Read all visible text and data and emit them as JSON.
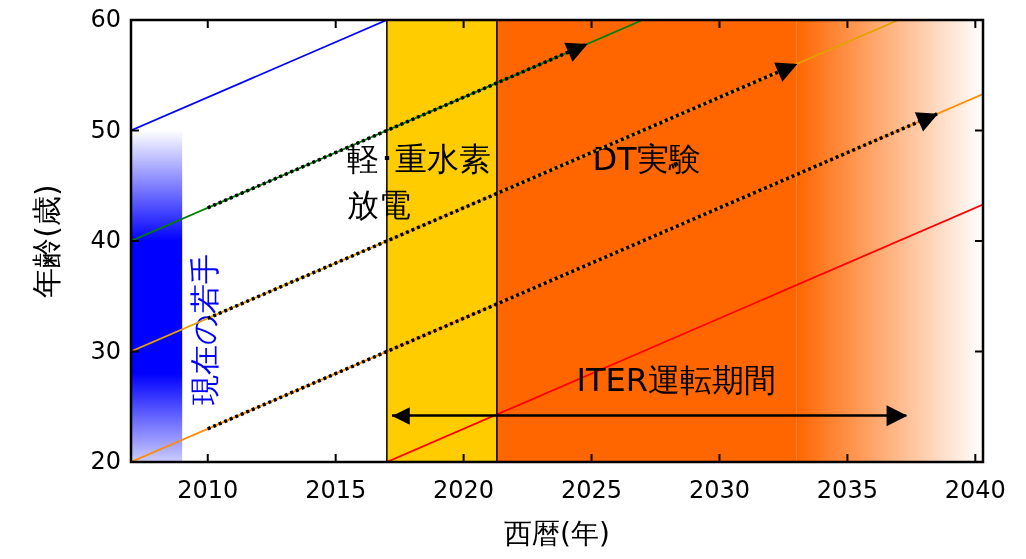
{
  "chart_data": {
    "type": "line",
    "xlabel": "西暦(年)",
    "ylabel": "年齢(歳)",
    "xlim": [
      2007,
      2040.3
    ],
    "ylim": [
      20,
      60
    ],
    "xticks": [
      2010,
      2015,
      2020,
      2025,
      2030,
      2035,
      2040
    ],
    "yticks": [
      20,
      30,
      40,
      50,
      60
    ],
    "grid": false,
    "marker": "none",
    "ref_lines": [
      {
        "axis": "x",
        "value": 2017,
        "color": "#000000"
      },
      {
        "axis": "x",
        "value": 2021.3,
        "color": "#000000"
      }
    ],
    "bands": [
      {
        "axis": "x",
        "from": 2007,
        "to": 2009,
        "label": "現在の若手",
        "color": "#0000ff"
      },
      {
        "axis": "x",
        "from": 2017,
        "to": 2021.3,
        "label": "軽･重水素放電",
        "color": "#ffcc00"
      },
      {
        "axis": "x",
        "from": 2021.3,
        "to": 2033,
        "label": "DT実験",
        "color": "#ff6600"
      },
      {
        "axis": "x",
        "from": 2033,
        "to": 2040.3,
        "color": "#ff6600"
      }
    ],
    "series": [
      {
        "color": "#0000ff",
        "x": [
          2007,
          2017
        ],
        "values": [
          50,
          60
        ],
        "line_style": "solid"
      },
      {
        "color": "#008000",
        "x": [
          2007,
          2027
        ],
        "values": [
          40,
          60
        ],
        "line_style": "solid"
      },
      {
        "color": "#e6a000",
        "x": [
          2007,
          2037
        ],
        "values": [
          30,
          60
        ],
        "line_style": "solid"
      },
      {
        "color": "#ff8c00",
        "x": [
          2007,
          2040.3
        ],
        "values": [
          20,
          53.3
        ],
        "line_style": "solid"
      },
      {
        "color": "#ff0000",
        "x": [
          2017,
          2040.3
        ],
        "values": [
          20,
          43.3
        ],
        "line_style": "solid"
      },
      {
        "color": "#000000",
        "x": [
          2010,
          2024.8
        ],
        "values": [
          43,
          57.8
        ],
        "line_style": "dotted"
      },
      {
        "color": "#000000",
        "x": [
          2010,
          2033
        ],
        "values": [
          33,
          56
        ],
        "line_style": "dotted"
      },
      {
        "color": "#000000",
        "x": [
          2010,
          2038.5
        ],
        "values": [
          23,
          51.5
        ],
        "line_style": "dotted"
      },
      {
        "color": "#000000",
        "x": [
          2017.2,
          2037.3
        ],
        "values": [
          24.2,
          24.2
        ],
        "line_style": "solid"
      }
    ],
    "annotations": [
      "ITER運転期間"
    ]
  }
}
